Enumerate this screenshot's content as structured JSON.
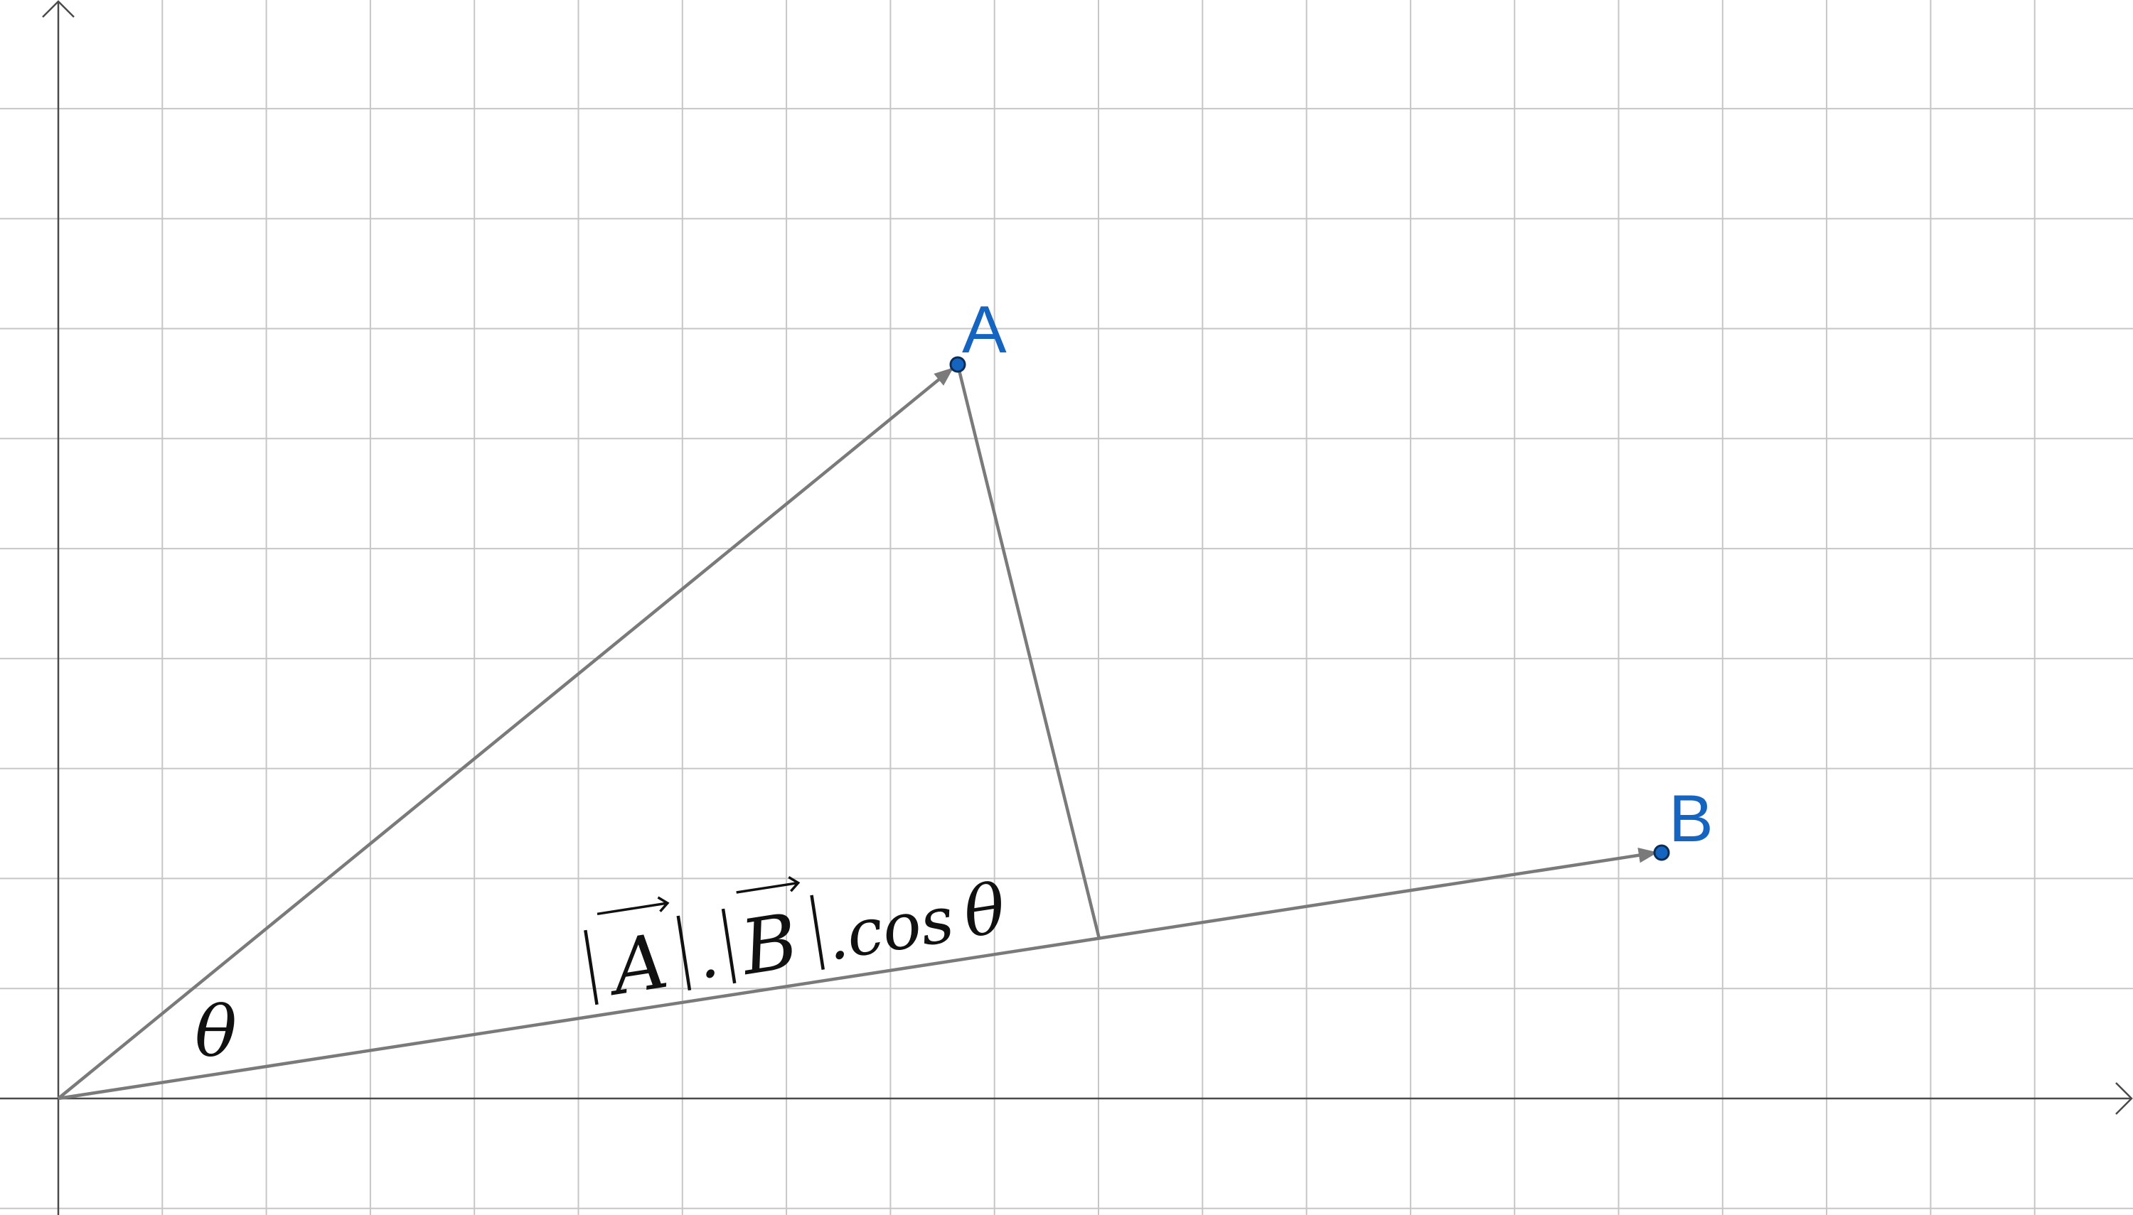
{
  "diagram": {
    "points": {
      "A": {
        "label": "A",
        "color": "#1565c0"
      },
      "B": {
        "label": "B",
        "color": "#1565c0"
      }
    },
    "angle_label": "θ",
    "projection_label": {
      "A": "A",
      "B": "B",
      "sep_dot": ".",
      "cos": ".cos",
      "theta": "θ"
    },
    "line_color": "#7a7a7a",
    "grid": true,
    "axes": true
  }
}
